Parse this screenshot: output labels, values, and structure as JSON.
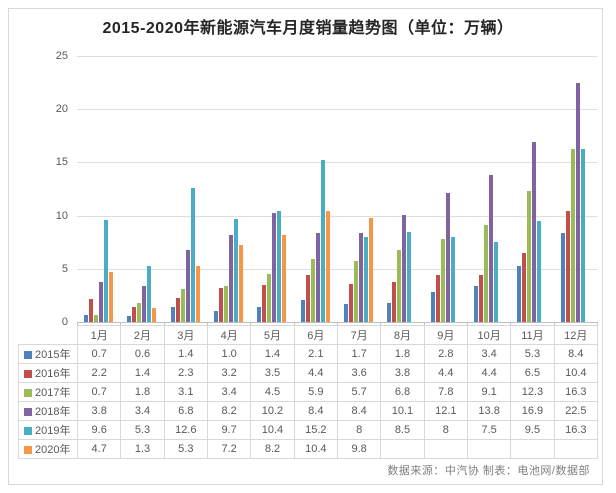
{
  "title": "2015-2020年新能源汽车月度销量趋势图（单位：万辆）",
  "footer": "数据来源：中汽协 制表：电池网/数据部",
  "colors": {
    "grid": "#dedede",
    "axis": "#bfbfbf",
    "table_border": "#d8d8d8",
    "text": "#595959"
  },
  "chart_data": {
    "type": "bar",
    "title": "2015-2020年新能源汽车月度销量趋势图（单位：万辆）",
    "xlabel": "",
    "ylabel": "",
    "ylim": [
      0,
      25
    ],
    "y_ticks": [
      0,
      5,
      10,
      15,
      20,
      25
    ],
    "grid": true,
    "legend_position": "table-left",
    "categories": [
      "1月",
      "2月",
      "3月",
      "4月",
      "5月",
      "6月",
      "7月",
      "8月",
      "9月",
      "10月",
      "11月",
      "12月"
    ],
    "series": [
      {
        "name": "2015年",
        "color": "#4F81BD",
        "values": [
          0.7,
          0.6,
          1.4,
          1.0,
          1.4,
          2.1,
          1.7,
          1.8,
          2.8,
          3.4,
          5.3,
          8.4
        ],
        "display": [
          "0.7",
          "0.6",
          "1.4",
          "1.0",
          "1.4",
          "2.1",
          "1.7",
          "1.8",
          "2.8",
          "3.4",
          "5.3",
          "8.4"
        ]
      },
      {
        "name": "2016年",
        "color": "#C0504D",
        "values": [
          2.2,
          1.4,
          2.3,
          3.2,
          3.5,
          4.4,
          3.6,
          3.8,
          4.4,
          4.4,
          6.5,
          10.4
        ],
        "display": [
          "2.2",
          "1.4",
          "2.3",
          "3.2",
          "3.5",
          "4.4",
          "3.6",
          "3.8",
          "4.4",
          "4.4",
          "6.5",
          "10.4"
        ]
      },
      {
        "name": "2017年",
        "color": "#9BBB59",
        "values": [
          0.7,
          1.8,
          3.1,
          3.4,
          4.5,
          5.9,
          5.7,
          6.8,
          7.8,
          9.1,
          12.3,
          16.3
        ],
        "display": [
          "0.7",
          "1.8",
          "3.1",
          "3.4",
          "4.5",
          "5.9",
          "5.7",
          "6.8",
          "7.8",
          "9.1",
          "12.3",
          "16.3"
        ]
      },
      {
        "name": "2018年",
        "color": "#8064A2",
        "values": [
          3.8,
          3.4,
          6.8,
          8.2,
          10.2,
          8.4,
          8.4,
          10.1,
          12.1,
          13.8,
          16.9,
          22.5
        ],
        "display": [
          "3.8",
          "3.4",
          "6.8",
          "8.2",
          "10.2",
          "8.4",
          "8.4",
          "10.1",
          "12.1",
          "13.8",
          "16.9",
          "22.5"
        ]
      },
      {
        "name": "2019年",
        "color": "#4BACC6",
        "values": [
          9.6,
          5.3,
          12.6,
          9.7,
          10.4,
          15.2,
          8,
          8.5,
          8,
          7.5,
          9.5,
          16.3
        ],
        "display": [
          "9.6",
          "5.3",
          "12.6",
          "9.7",
          "10.4",
          "15.2",
          "8",
          "8.5",
          "8",
          "7.5",
          "9.5",
          "16.3"
        ]
      },
      {
        "name": "2020年",
        "color": "#F79646",
        "values": [
          4.7,
          1.3,
          5.3,
          7.2,
          8.2,
          10.4,
          9.8,
          null,
          null,
          null,
          null,
          null
        ],
        "display": [
          "4.7",
          "1.3",
          "5.3",
          "7.2",
          "8.2",
          "10.4",
          "9.8",
          "",
          "",
          "",
          "",
          ""
        ]
      }
    ]
  }
}
